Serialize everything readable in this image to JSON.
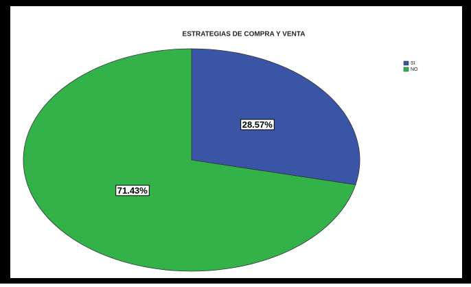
{
  "chart_data": {
    "type": "pie",
    "title": "ESTRATEGIAS DE COMPRA Y VENTA",
    "categories": [
      "SI",
      "NO"
    ],
    "values": [
      28.57,
      71.43
    ],
    "value_labels": [
      "28.57%",
      "71.43%"
    ],
    "colors": [
      "#3a55a5",
      "#34b24a"
    ],
    "legend": "top-right"
  }
}
